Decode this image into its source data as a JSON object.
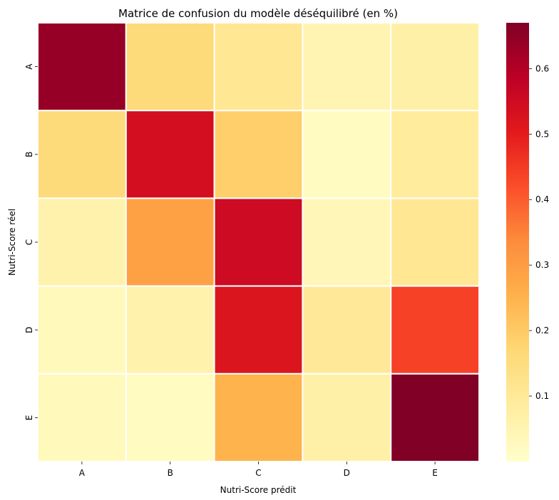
{
  "chart_data": {
    "type": "heatmap",
    "title": "Matrice de confusion du modèle déséquilibré (en %)",
    "xlabel": "Nutri-Score prédit",
    "ylabel": "Nutri-Score réel",
    "x_categories": [
      "A",
      "B",
      "C",
      "D",
      "E"
    ],
    "y_categories": [
      "A",
      "B",
      "C",
      "D",
      "E"
    ],
    "values": [
      [
        0.64,
        0.16,
        0.11,
        0.05,
        0.07
      ],
      [
        0.16,
        0.54,
        0.19,
        0.02,
        0.09
      ],
      [
        0.06,
        0.29,
        0.55,
        0.04,
        0.11
      ],
      [
        0.03,
        0.06,
        0.52,
        0.1,
        0.44
      ],
      [
        0.03,
        0.02,
        0.25,
        0.07,
        0.67
      ]
    ],
    "colorbar": {
      "min": 0.0,
      "max": 0.67,
      "ticks": [
        0.1,
        0.2,
        0.3,
        0.4,
        0.5,
        0.6
      ],
      "tick_labels": [
        "0.1",
        "0.2",
        "0.3",
        "0.4",
        "0.5",
        "0.6"
      ],
      "colormap": "YlOrRd"
    },
    "grid_line_color": "#ffffff",
    "legend_position": "right"
  }
}
